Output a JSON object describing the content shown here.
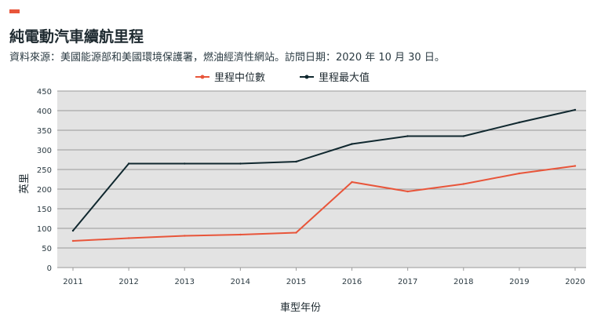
{
  "header": {
    "title": "純電動汽車續航里程",
    "subtitle": "資料來源：美國能源部和美國環境保護署，燃油經濟性網站。訪問日期：2020 年 10 月 30 日。"
  },
  "colors": {
    "accent": "#e8553a",
    "median": "#e8553a",
    "max": "#10282f",
    "plot_bg": "#e3e3e3",
    "grid": "#9a9a9a"
  },
  "chart_data": {
    "type": "line",
    "x": [
      "2011",
      "2012",
      "2013",
      "2014",
      "2015",
      "2016",
      "2017",
      "2018",
      "2019",
      "2020"
    ],
    "series": [
      {
        "name": "里程中位數",
        "values": [
          68,
          75,
          81,
          84,
          89,
          218,
          194,
          213,
          240,
          259
        ]
      },
      {
        "name": "里程最大值",
        "values": [
          94,
          265,
          265,
          265,
          270,
          315,
          335,
          335,
          370,
          402
        ]
      }
    ],
    "yticks": [
      "0",
      "50",
      "100",
      "150",
      "200",
      "250",
      "300",
      "350",
      "400",
      "450"
    ],
    "ylim": [
      0,
      450
    ],
    "xlabel": "車型年份",
    "ylabel": "英里",
    "legend_position": "top-center",
    "grid": true
  }
}
